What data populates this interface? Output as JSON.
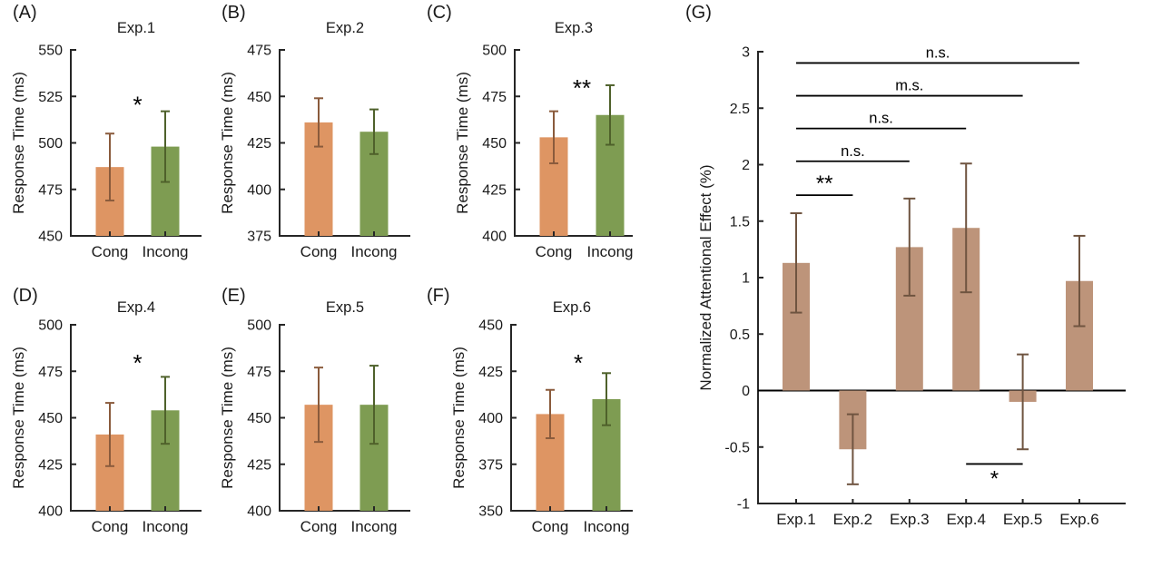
{
  "figure": {
    "description": "Response time and normalized attentional effect bar charts across six experiments"
  },
  "colors": {
    "cong_bar": "#DE9563",
    "incong_bar": "#7E9C52",
    "cong_error": "#8A5B3C",
    "incong_error": "#4F612B",
    "effect_bar": "#BD947A",
    "effect_error": "#6F5440",
    "axis": "#262626",
    "text": "#1A1A1A",
    "significance": "#000000"
  },
  "chart_data": [
    {
      "type": "bar",
      "panel_label": "(A)",
      "title": "Exp.1",
      "ylabel": "Response Time (ms)",
      "categories": [
        "Cong",
        "Incong"
      ],
      "values": [
        487,
        498
      ],
      "errors": [
        18,
        19
      ],
      "ylim": [
        450,
        550
      ],
      "ytick_values": [
        450,
        475,
        500,
        525,
        550
      ],
      "ytick_labels": [
        "450",
        "475",
        "500",
        "525",
        "550"
      ],
      "bar_colors": [
        "#DE9563",
        "#7E9C52"
      ],
      "error_colors": [
        "#8A5B3C",
        "#4F612B"
      ],
      "significance": {
        "label": "*",
        "y": 523
      }
    },
    {
      "type": "bar",
      "panel_label": "(B)",
      "title": "Exp.2",
      "ylabel": "Response Time (ms)",
      "categories": [
        "Cong",
        "Incong"
      ],
      "values": [
        436,
        431
      ],
      "errors": [
        13,
        12
      ],
      "ylim": [
        375,
        475
      ],
      "ytick_values": [
        375,
        400,
        425,
        450,
        475
      ],
      "ytick_labels": [
        "375",
        "400",
        "425",
        "450",
        "475"
      ],
      "bar_colors": [
        "#DE9563",
        "#7E9C52"
      ],
      "error_colors": [
        "#8A5B3C",
        "#4F612B"
      ],
      "significance": null
    },
    {
      "type": "bar",
      "panel_label": "(C)",
      "title": "Exp.3",
      "ylabel": "Response Time (ms)",
      "categories": [
        "Cong",
        "Incong"
      ],
      "values": [
        453,
        465
      ],
      "errors": [
        14,
        16
      ],
      "ylim": [
        400,
        500
      ],
      "ytick_values": [
        400,
        425,
        450,
        475,
        500
      ],
      "ytick_labels": [
        "400",
        "425",
        "450",
        "475",
        "500"
      ],
      "bar_colors": [
        "#DE9563",
        "#7E9C52"
      ],
      "error_colors": [
        "#8A5B3C",
        "#4F612B"
      ],
      "significance": {
        "label": "**",
        "y": 482
      }
    },
    {
      "type": "bar",
      "panel_label": "(D)",
      "title": "Exp.4",
      "ylabel": "Response Time (ms)",
      "categories": [
        "Cong",
        "Incong"
      ],
      "values": [
        441,
        454
      ],
      "errors": [
        17,
        18
      ],
      "ylim": [
        400,
        500
      ],
      "ytick_values": [
        400,
        425,
        450,
        475,
        500
      ],
      "ytick_labels": [
        "400",
        "425",
        "450",
        "475",
        "500"
      ],
      "bar_colors": [
        "#DE9563",
        "#7E9C52"
      ],
      "error_colors": [
        "#8A5B3C",
        "#4F612B"
      ],
      "significance": {
        "label": "*",
        "y": 482
      }
    },
    {
      "type": "bar",
      "panel_label": "(E)",
      "title": "Exp.5",
      "ylabel": "Response Time (ms)",
      "categories": [
        "Cong",
        "Incong"
      ],
      "values": [
        457,
        457
      ],
      "errors": [
        20,
        21
      ],
      "ylim": [
        400,
        500
      ],
      "ytick_values": [
        400,
        425,
        450,
        475,
        500
      ],
      "ytick_labels": [
        "400",
        "425",
        "450",
        "475",
        "500"
      ],
      "bar_colors": [
        "#DE9563",
        "#7E9C52"
      ],
      "error_colors": [
        "#8A5B3C",
        "#4F612B"
      ],
      "significance": null
    },
    {
      "type": "bar",
      "panel_label": "(F)",
      "title": "Exp.6",
      "ylabel": "Response Time (ms)",
      "categories": [
        "Cong",
        "Incong"
      ],
      "values": [
        402,
        410
      ],
      "errors": [
        13,
        14
      ],
      "ylim": [
        350,
        450
      ],
      "ytick_values": [
        350,
        375,
        400,
        425,
        450
      ],
      "ytick_labels": [
        "350",
        "375",
        "400",
        "425",
        "450"
      ],
      "bar_colors": [
        "#DE9563",
        "#7E9C52"
      ],
      "error_colors": [
        "#8A5B3C",
        "#4F612B"
      ],
      "significance": {
        "label": "*",
        "y": 432
      }
    },
    {
      "type": "bar",
      "panel_label": "(G)",
      "title": "",
      "ylabel": "Normalized Attentional Effect (%)",
      "categories": [
        "Exp.1",
        "Exp.2",
        "Exp.3",
        "Exp.4",
        "Exp.5",
        "Exp.6"
      ],
      "values": [
        1.13,
        -0.52,
        1.27,
        1.44,
        -0.1,
        0.97
      ],
      "errors": [
        0.44,
        0.31,
        0.43,
        0.57,
        0.42,
        0.4
      ],
      "ylim": [
        -1,
        3
      ],
      "ytick_values": [
        -1,
        -0.5,
        0,
        0.5,
        1,
        1.5,
        2,
        2.5,
        3
      ],
      "ytick_labels": [
        "-1",
        "-0.5",
        "0",
        "0.5",
        "1",
        "1.5",
        "2",
        "2.5",
        "3"
      ],
      "bar_colors": [
        "#BD947A"
      ],
      "error_colors": [
        "#6F5440"
      ],
      "zero_line": true,
      "comparisons": [
        {
          "label": "n.s.",
          "y": 2.9,
          "from": 0,
          "to": 5,
          "label_position": "above"
        },
        {
          "label": "m.s.",
          "y": 2.61,
          "from": 0,
          "to": 4,
          "label_position": "above"
        },
        {
          "label": "n.s.",
          "y": 2.32,
          "from": 0,
          "to": 3,
          "label_position": "above"
        },
        {
          "label": "n.s.",
          "y": 2.03,
          "from": 0,
          "to": 2,
          "label_position": "above"
        },
        {
          "label": "**",
          "y": 1.73,
          "from": 0,
          "to": 1,
          "label_position": "above"
        },
        {
          "label": "*",
          "y": -0.65,
          "from": 3,
          "to": 4,
          "label_position": "below"
        }
      ]
    }
  ]
}
